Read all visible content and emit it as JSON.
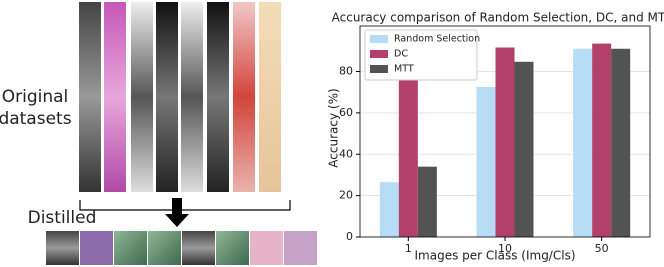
{
  "figure": {
    "original_label": "Original\ndatasets",
    "distilled_label": "Distilled"
  },
  "chart_data": {
    "type": "bar",
    "title": "Accuracy comparison of Random Selection, DC, and MTT",
    "x_label": "Images per Class (Img/Cls)",
    "y_label": "Accuracy (%)",
    "categories": [
      "1",
      "10",
      "50"
    ],
    "series": [
      {
        "name": "Random Selection",
        "color": "#b7dcf6",
        "values": [
          26.5,
          72.5,
          91
        ]
      },
      {
        "name": "DC",
        "color": "#b2406b",
        "values": [
          75.8,
          91.6,
          93.5
        ]
      },
      {
        "name": "MTT",
        "color": "#535353",
        "values": [
          34,
          84.7,
          91
        ]
      }
    ],
    "ylim": [
      0,
      102
    ],
    "yticks": [
      0,
      20,
      40,
      60,
      80
    ],
    "grid": true,
    "legend": "upper left"
  }
}
